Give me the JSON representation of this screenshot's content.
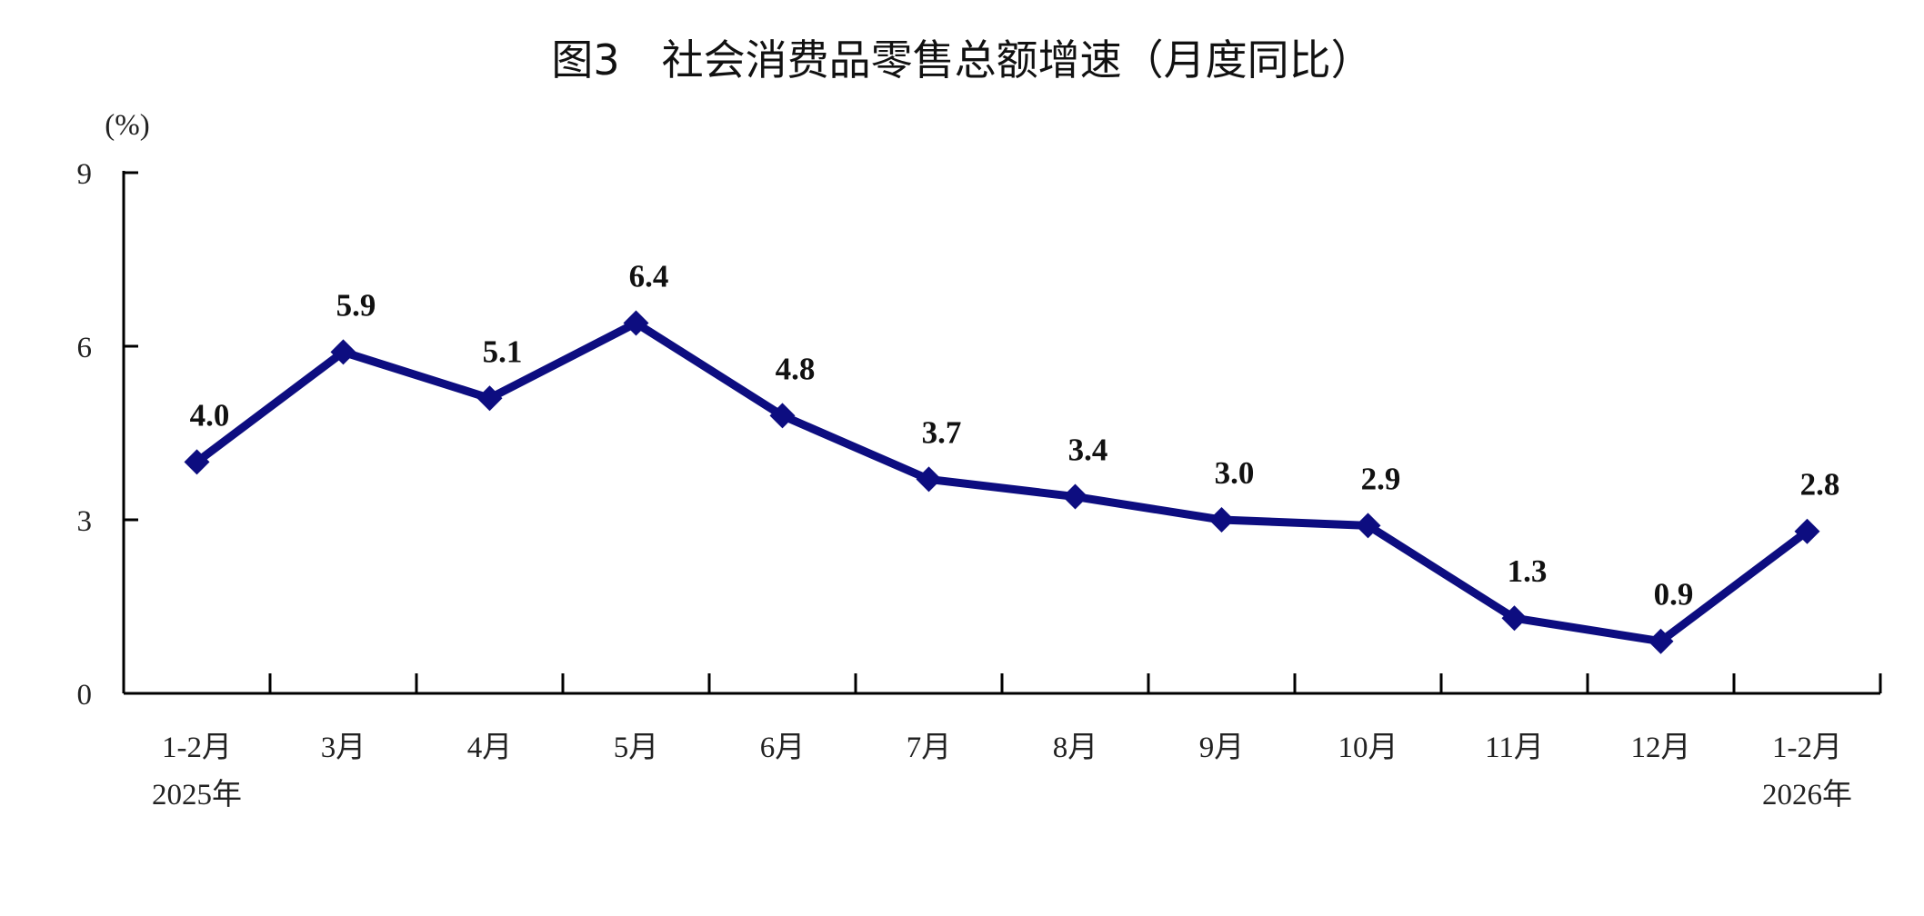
{
  "chart_data": {
    "type": "line",
    "title": "图3　社会消费品零售总额增速（月度同比）",
    "ylabel": "(%)",
    "xlabel": "",
    "categories": [
      "1-2月\n2025年",
      "3月",
      "4月",
      "5月",
      "6月",
      "7月",
      "8月",
      "9月",
      "10月",
      "11月",
      "12月",
      "1-2月\n2026年"
    ],
    "series": [
      {
        "values": [
          4.0,
          5.9,
          5.1,
          6.4,
          4.8,
          3.7,
          3.4,
          3.0,
          2.9,
          1.3,
          0.9,
          2.8
        ]
      }
    ],
    "data_labels": [
      "4.0",
      "5.9",
      "5.1",
      "6.4",
      "4.8",
      "3.7",
      "3.4",
      "3.0",
      "2.9",
      "1.3",
      "0.9",
      "2.8"
    ],
    "ylim": [
      0,
      9
    ],
    "yticks": [
      0,
      3,
      6,
      9
    ],
    "grid": false,
    "marker": "diamond",
    "line_color": "#0d0d80"
  }
}
